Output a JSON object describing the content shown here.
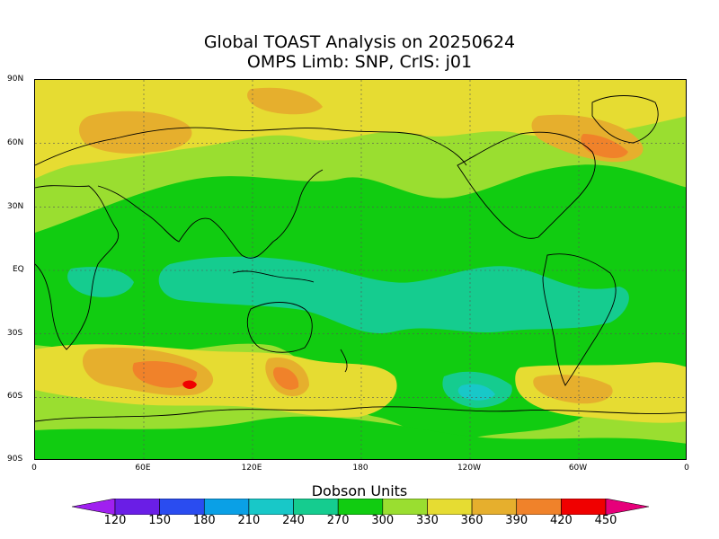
{
  "title": {
    "line1": "Global TOAST Analysis on 20250624",
    "line2": "OMPS Limb: SNP,  CrIS: j01"
  },
  "lat_labels": [
    "90N",
    "60N",
    "30N",
    "EQ",
    "30S",
    "60S",
    "90S"
  ],
  "lon_labels": [
    "0",
    "60E",
    "120E",
    "180",
    "120W",
    "60W",
    "0"
  ],
  "colorbar": {
    "title": "Dobson Units",
    "levels": [
      "120",
      "150",
      "180",
      "210",
      "240",
      "270",
      "300",
      "330",
      "360",
      "390",
      "420",
      "450"
    ],
    "colors": [
      "#a020f0",
      "#6a1ee6",
      "#2a4cf0",
      "#0aa0e6",
      "#18c8c8",
      "#15cc8f",
      "#11cc11",
      "#9ade30",
      "#e6dc32",
      "#e6af2d",
      "#f0822a",
      "#f00000",
      "#e6007a"
    ]
  },
  "map_colors": {
    "background": "#9ade30",
    "band_300": "#11cc11",
    "band_270": "#15cc8f",
    "band_240": "#18c8c8",
    "band_330": "#e6dc32",
    "band_360": "#e6af2d",
    "band_390": "#f0822a",
    "band_420": "#f00000"
  }
}
